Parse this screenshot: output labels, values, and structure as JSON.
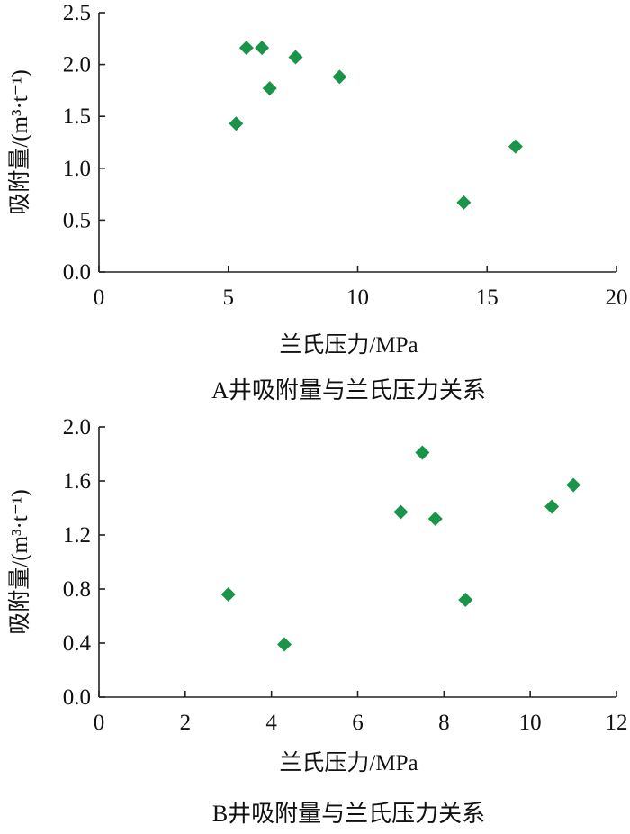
{
  "chart_data": [
    {
      "type": "scatter",
      "caption": "A井吸附量与兰氏压力关系",
      "xlabel": "兰氏压力/MPa",
      "ylabel": "吸附量/(m³·t⁻¹)",
      "xlim": [
        0,
        20
      ],
      "ylim": [
        0,
        2.5
      ],
      "xticks": [
        0,
        5,
        10,
        15,
        20
      ],
      "yticks": [
        0.0,
        0.5,
        1.0,
        1.5,
        2.0,
        2.5
      ],
      "xtick_labels": [
        "0",
        "5",
        "10",
        "15",
        "20"
      ],
      "ytick_labels": [
        "0.0",
        "0.5",
        "1.0",
        "1.5",
        "2.0",
        "2.5"
      ],
      "grid": false,
      "marker": "diamond",
      "color": "#1a9448",
      "points": [
        {
          "x": 5.3,
          "y": 1.43
        },
        {
          "x": 5.7,
          "y": 2.16
        },
        {
          "x": 6.3,
          "y": 2.16
        },
        {
          "x": 6.6,
          "y": 1.77
        },
        {
          "x": 7.6,
          "y": 2.07
        },
        {
          "x": 9.3,
          "y": 1.88
        },
        {
          "x": 14.1,
          "y": 0.67
        },
        {
          "x": 16.1,
          "y": 1.21
        }
      ]
    },
    {
      "type": "scatter",
      "caption": "B井吸附量与兰氏压力关系",
      "xlabel": "兰氏压力/MPa",
      "ylabel": "吸附量/(m³·t⁻¹)",
      "xlim": [
        0,
        12
      ],
      "ylim": [
        0,
        2.0
      ],
      "xticks": [
        0,
        2,
        4,
        6,
        8,
        10,
        12
      ],
      "yticks": [
        0.0,
        0.4,
        0.8,
        1.2,
        1.6,
        2.0
      ],
      "xtick_labels": [
        "0",
        "2",
        "4",
        "6",
        "8",
        "10",
        "12"
      ],
      "ytick_labels": [
        "0.0",
        "0.4",
        "0.8",
        "1.2",
        "1.6",
        "2.0"
      ],
      "grid": false,
      "marker": "diamond",
      "color": "#1a9448",
      "points": [
        {
          "x": 3.0,
          "y": 0.76
        },
        {
          "x": 4.3,
          "y": 0.39
        },
        {
          "x": 7.0,
          "y": 1.37
        },
        {
          "x": 7.5,
          "y": 1.81
        },
        {
          "x": 7.8,
          "y": 1.32
        },
        {
          "x": 8.5,
          "y": 0.72
        },
        {
          "x": 10.5,
          "y": 1.41
        },
        {
          "x": 11.0,
          "y": 1.57
        }
      ]
    }
  ]
}
